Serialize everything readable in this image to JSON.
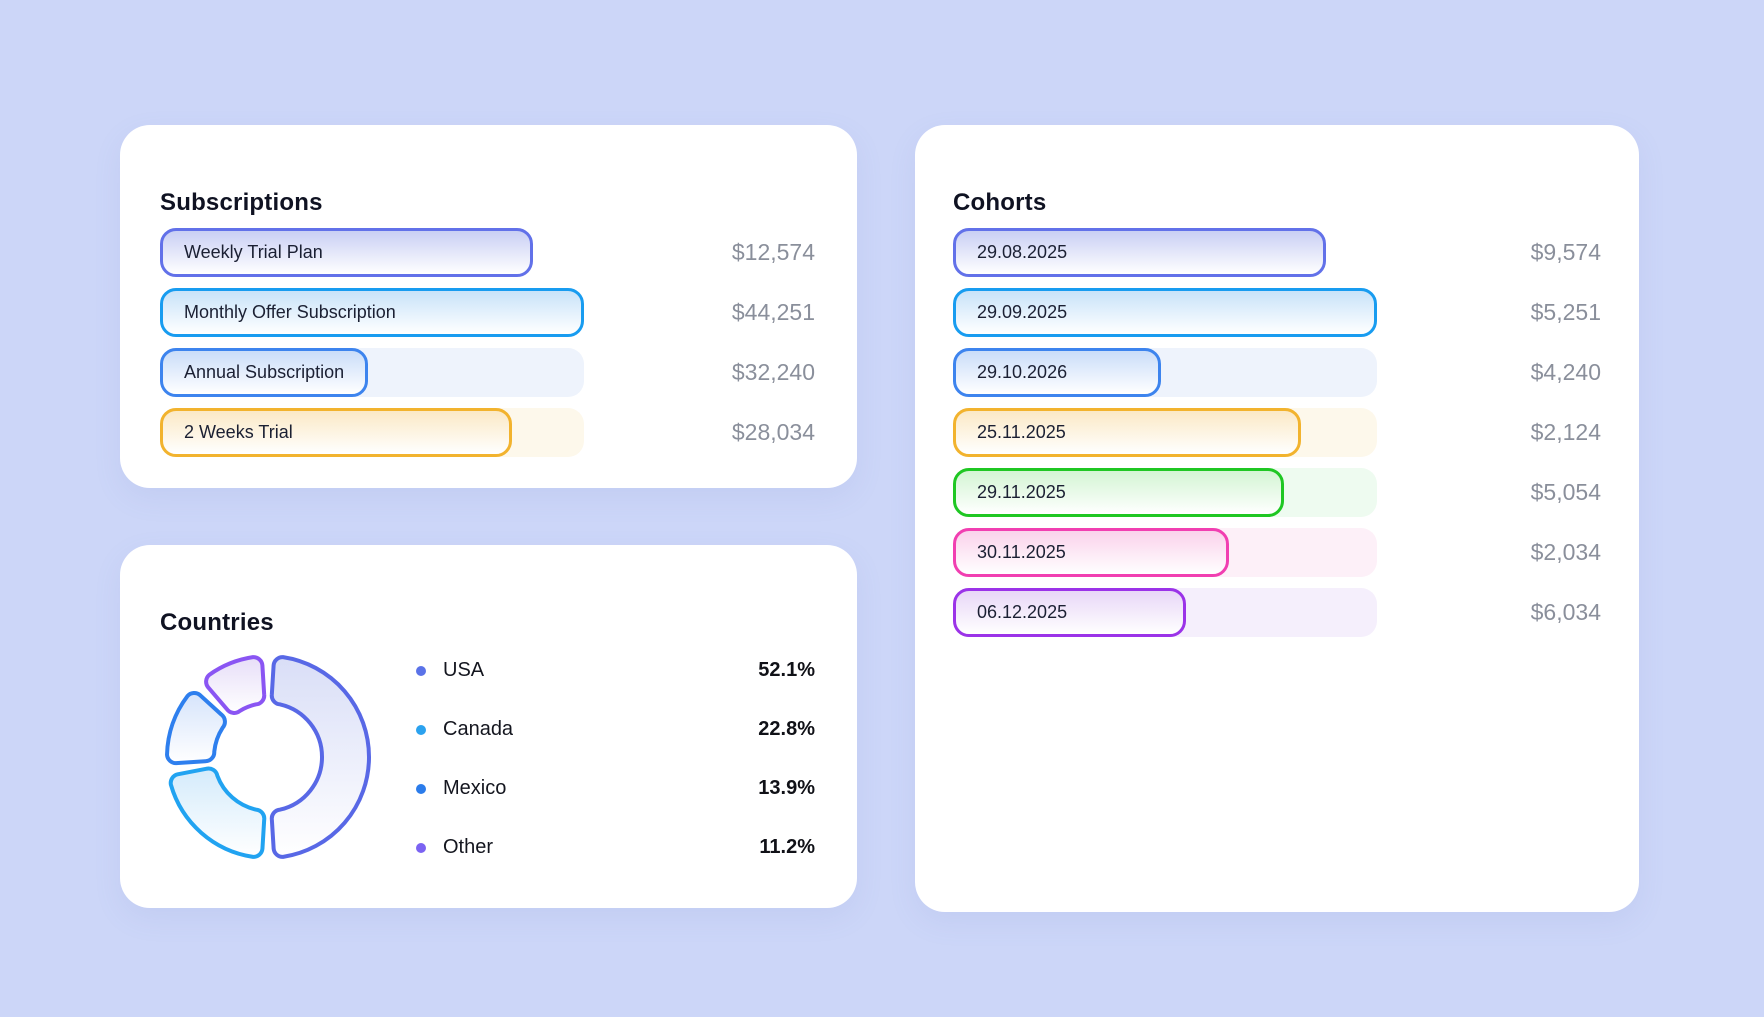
{
  "page": {
    "background": "#ccd6f8"
  },
  "subscriptions_card": {
    "title": "Subscriptions",
    "rows": [
      {
        "label": "Weekly Trial Plan",
        "value": "$12,574",
        "border": "#6271e9",
        "tint": "#c9cff4",
        "track": "#ffffff",
        "width_pct": 88
      },
      {
        "label": "Monthly Offer Subscription",
        "value": "$44,251",
        "border": "#189cf0",
        "tint": "#c8e3f9",
        "track": "#f2f8fe",
        "width_pct": 100
      },
      {
        "label": "Annual Subscription",
        "value": "$32,240",
        "border": "#3d84ee",
        "tint": "#caddf9",
        "track": "#eef3fc",
        "width_pct": 49
      },
      {
        "label": "2 Weeks Trial",
        "value": "$28,034",
        "border": "#f2b32e",
        "tint": "#fbe9c6",
        "track": "#fdf8eb",
        "width_pct": 83
      }
    ]
  },
  "countries_card": {
    "title": "Countries",
    "donut": {
      "segments": [
        {
          "name": "USA",
          "pct": 52.1,
          "border": "#5868e6",
          "tint": "#d9def7"
        },
        {
          "name": "Canada",
          "pct": 22.8,
          "border": "#21a3f1",
          "tint": "#d4ebfb"
        },
        {
          "name": "Mexico",
          "pct": 13.9,
          "border": "#2e7fee",
          "tint": "#d6e4fb"
        },
        {
          "name": "Other",
          "pct": 11.2,
          "border": "#8a55f3",
          "tint": "#e7def8"
        }
      ]
    },
    "legend": [
      {
        "name": "USA",
        "pct_label": "52.1%",
        "dot": "#5a72e8"
      },
      {
        "name": "Canada",
        "pct_label": "22.8%",
        "dot": "#2ba2ef"
      },
      {
        "name": "Mexico",
        "pct_label": "13.9%",
        "dot": "#2b7ceb"
      },
      {
        "name": "Other",
        "pct_label": "11.2%",
        "dot": "#7b63f2"
      }
    ]
  },
  "cohorts_card": {
    "title": "Cohorts",
    "rows": [
      {
        "label": "29.08.2025",
        "value": "$9,574",
        "border": "#6271e9",
        "tint": "#c9cff4",
        "track": "#ffffff",
        "width_pct": 88
      },
      {
        "label": "29.09.2025",
        "value": "$5,251",
        "border": "#189cf0",
        "tint": "#c8e3f9",
        "track": "#f2f8fe",
        "width_pct": 100
      },
      {
        "label": "29.10.2026",
        "value": "$4,240",
        "border": "#3d84ee",
        "tint": "#caddf9",
        "track": "#eef3fc",
        "width_pct": 49
      },
      {
        "label": "25.11.2025",
        "value": "$2,124",
        "border": "#f2b32e",
        "tint": "#fbe9c6",
        "track": "#fdf8eb",
        "width_pct": 82
      },
      {
        "label": "29.11.2025",
        "value": "$5,054",
        "border": "#1fc723",
        "tint": "#d3f5d3",
        "track": "#eefbf0",
        "width_pct": 78
      },
      {
        "label": "30.11.2025",
        "value": "$2,034",
        "border": "#f13fb1",
        "tint": "#fad2eb",
        "track": "#fdf0f8",
        "width_pct": 65
      },
      {
        "label": "06.12.2025",
        "value": "$6,034",
        "border": "#9b33e8",
        "tint": "#e8d7f7",
        "track": "#f5effc",
        "width_pct": 55
      }
    ]
  },
  "chart_data": [
    {
      "type": "bar",
      "title": "Subscriptions",
      "orientation": "horizontal",
      "categories": [
        "Weekly Trial Plan",
        "Monthly Offer Subscription",
        "Annual Subscription",
        "2 Weeks Trial"
      ],
      "values": [
        12574,
        44251,
        32240,
        28034
      ],
      "value_labels": [
        "$12,574",
        "$44,251",
        "$32,240",
        "$28,034"
      ],
      "bar_length_pct_of_track": [
        88,
        100,
        49,
        83
      ],
      "grid": false,
      "legend_position": "none"
    },
    {
      "type": "pie",
      "title": "Countries",
      "donut": true,
      "labels": [
        "USA",
        "Canada",
        "Mexico",
        "Other"
      ],
      "values": [
        52.1,
        22.8,
        13.9,
        11.2
      ],
      "unit": "%",
      "legend_position": "right",
      "colors": [
        "#5868e6",
        "#21a3f1",
        "#2e7fee",
        "#8a55f3"
      ]
    },
    {
      "type": "bar",
      "title": "Cohorts",
      "orientation": "horizontal",
      "categories": [
        "29.08.2025",
        "29.09.2025",
        "29.10.2026",
        "25.11.2025",
        "29.11.2025",
        "30.11.2025",
        "06.12.2025"
      ],
      "values": [
        9574,
        5251,
        4240,
        2124,
        5054,
        2034,
        6034
      ],
      "value_labels": [
        "$9,574",
        "$5,251",
        "$4,240",
        "$2,124",
        "$5,054",
        "$2,034",
        "$6,034"
      ],
      "bar_length_pct_of_track": [
        88,
        100,
        49,
        82,
        78,
        65,
        55
      ],
      "grid": false,
      "legend_position": "none"
    }
  ]
}
